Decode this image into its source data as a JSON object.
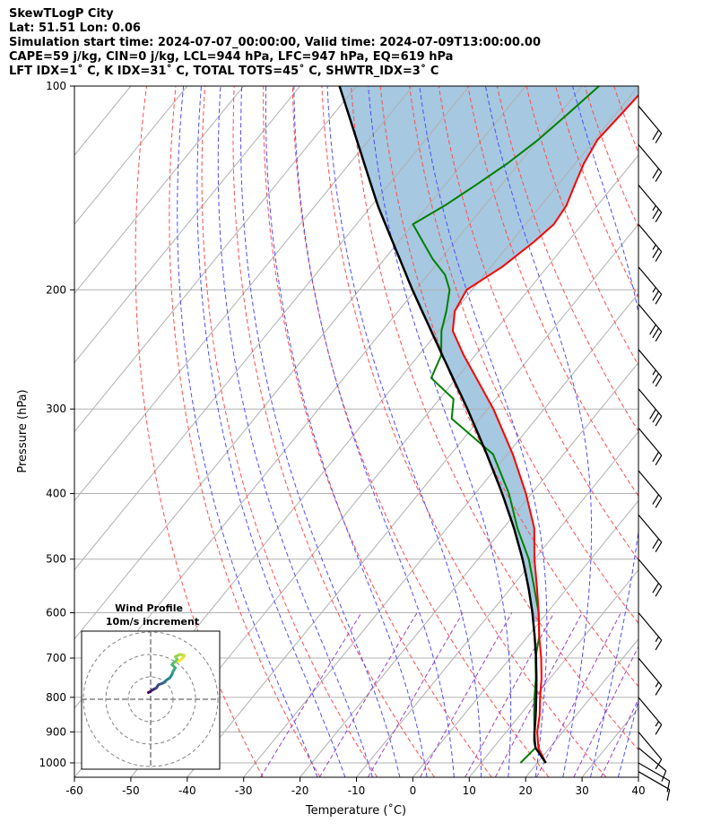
{
  "title_lines": [
    "SkewTLogP City",
    "Lat: 51.51   Lon: 0.06",
    "Simulation start time: 2024-07-07_00:00:00, Valid time: 2024-07-09T13:00:00.00",
    "CAPE=59 j/kg, CIN=0 j/kg, LCL=944 hPa, LFC=947 hPa, EQ=619 hPa",
    "LFT IDX=1˚ C, K IDX=31˚ C, TOTAL TOTS=45˚ C, SHWTR_IDX=3˚ C"
  ],
  "colors": {
    "temperature": "#ff0000",
    "dewpoint": "#008000",
    "parcel": "#000000",
    "cape_fill": "#a6c8e0",
    "dry_adiabat": "#ff4d4d",
    "moist_adiabat": "#4d4dff",
    "mixing_ratio": "#9a40c0",
    "isotherm": "#b0b0b0",
    "isobar": "#b0b0b0"
  },
  "chart_data": {
    "type": "skewt",
    "xlabel": "Temperature (˚C)",
    "ylabel": "Pressure (hPa)",
    "xlim": [
      -60,
      40
    ],
    "ylim": [
      1050,
      100
    ],
    "y_scale": "log",
    "x_ticks": [
      -60,
      -50,
      -40,
      -30,
      -20,
      -10,
      0,
      10,
      20,
      30,
      40
    ],
    "y_ticks": [
      1000,
      900,
      800,
      700,
      600,
      500,
      400,
      300,
      200,
      100
    ],
    "grid": true,
    "temperature": {
      "p": [
        1000,
        950,
        900,
        850,
        800,
        750,
        700,
        650,
        600,
        550,
        500,
        450,
        400,
        350,
        300,
        270,
        250,
        230,
        215,
        200,
        185,
        170,
        160,
        150,
        140,
        130,
        120,
        110,
        100
      ],
      "t": [
        21.5,
        18.0,
        15.5,
        13.5,
        11.0,
        8.5,
        5.5,
        2.0,
        -1.5,
        -5.5,
        -10.0,
        -14.5,
        -21.0,
        -29.0,
        -39.0,
        -46.5,
        -52.0,
        -57.5,
        -60.0,
        -61.0,
        -58.0,
        -56.0,
        -55.0,
        -55.5,
        -57.0,
        -58.5,
        -59.5,
        -59.0,
        -58.5
      ]
    },
    "dewpoint": {
      "p": [
        1000,
        950,
        900,
        850,
        800,
        750,
        700,
        650,
        600,
        550,
        500,
        450,
        400,
        350,
        310,
        290,
        270,
        250,
        230,
        215,
        200,
        190,
        180,
        160,
        150,
        140,
        130,
        120,
        110,
        100
      ],
      "td": [
        17.0,
        17.5,
        15.0,
        12.5,
        10.0,
        7.5,
        4.5,
        2.0,
        -1.5,
        -6.0,
        -11.0,
        -17.5,
        -24.0,
        -32.5,
        -45.0,
        -47.5,
        -54.5,
        -56.0,
        -59.5,
        -61.5,
        -64.0,
        -67.0,
        -71.5,
        -80.0,
        -77.0,
        -74.5,
        -72.0,
        -70.0,
        -68.5,
        -67.0
      ]
    },
    "parcel": {
      "p": [
        1000,
        944,
        900,
        850,
        800,
        750,
        700,
        650,
        600,
        550,
        500,
        450,
        400,
        350,
        300,
        250,
        200,
        150,
        100
      ],
      "t": [
        21.5,
        17.0,
        15.0,
        12.8,
        10.3,
        7.6,
        4.6,
        1.2,
        -2.6,
        -7.0,
        -12.1,
        -18.1,
        -25.2,
        -33.6,
        -43.6,
        -55.8,
        -70.6,
        -89.0,
        -113.0
      ]
    },
    "cape_region": {
      "p_bottom": 619,
      "p_top": 100
    },
    "wind_barbs": [
      {
        "p": 1030,
        "speed_kt": 10,
        "dir_deg": 300
      },
      {
        "p": 1000,
        "speed_kt": 10,
        "dir_deg": 300
      },
      {
        "p": 950,
        "speed_kt": 10,
        "dir_deg": 310
      },
      {
        "p": 900,
        "speed_kt": 10,
        "dir_deg": 320
      },
      {
        "p": 800,
        "speed_kt": 15,
        "dir_deg": 320
      },
      {
        "p": 700,
        "speed_kt": 15,
        "dir_deg": 320
      },
      {
        "p": 600,
        "speed_kt": 15,
        "dir_deg": 320
      },
      {
        "p": 500,
        "speed_kt": 20,
        "dir_deg": 320
      },
      {
        "p": 430,
        "speed_kt": 20,
        "dir_deg": 320
      },
      {
        "p": 370,
        "speed_kt": 20,
        "dir_deg": 320
      },
      {
        "p": 320,
        "speed_kt": 20,
        "dir_deg": 320
      },
      {
        "p": 280,
        "speed_kt": 30,
        "dir_deg": 320
      },
      {
        "p": 245,
        "speed_kt": 25,
        "dir_deg": 320
      },
      {
        "p": 210,
        "speed_kt": 30,
        "dir_deg": 320
      },
      {
        "p": 185,
        "speed_kt": 25,
        "dir_deg": 320
      },
      {
        "p": 160,
        "speed_kt": 25,
        "dir_deg": 320
      },
      {
        "p": 140,
        "speed_kt": 25,
        "dir_deg": 320
      },
      {
        "p": 122,
        "speed_kt": 20,
        "dir_deg": 320
      },
      {
        "p": 107,
        "speed_kt": 20,
        "dir_deg": 320
      }
    ],
    "hodograph": {
      "title": "Wind Profile",
      "subtitle": "10m/s increment",
      "rings": 3,
      "u": [
        -1.0,
        0.0,
        0.5,
        1.5,
        2.5,
        3.5,
        5.0,
        6.0,
        7.0,
        8.5,
        9.5,
        10.0,
        11.0,
        9.5,
        10.5,
        12.0,
        11.0,
        13.0,
        15.0,
        14.0,
        12.5
      ],
      "v": [
        3.0,
        3.5,
        4.0,
        4.5,
        5.0,
        6.5,
        7.0,
        7.5,
        8.5,
        9.5,
        11.0,
        12.5,
        14.0,
        15.5,
        16.5,
        17.5,
        19.0,
        20.0,
        19.5,
        18.0,
        17.0
      ]
    }
  }
}
